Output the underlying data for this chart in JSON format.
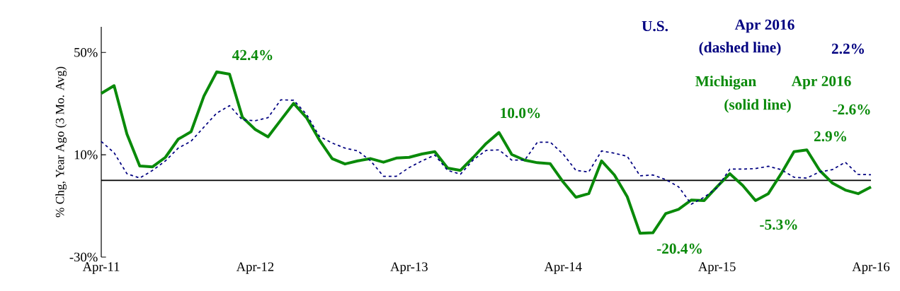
{
  "chart_data": {
    "type": "line",
    "ylabel": "% Chg, Year Ago (3 Mo. Avg)",
    "categories": [
      "Apr-11",
      null,
      null,
      null,
      null,
      null,
      null,
      null,
      null,
      null,
      null,
      null,
      "Apr-12",
      null,
      null,
      null,
      null,
      null,
      null,
      null,
      null,
      null,
      null,
      null,
      "Apr-13",
      null,
      null,
      null,
      null,
      null,
      null,
      null,
      null,
      null,
      null,
      null,
      "Apr-14",
      null,
      null,
      null,
      null,
      null,
      null,
      null,
      null,
      null,
      null,
      null,
      "Apr-15",
      null,
      null,
      null,
      null,
      null,
      null,
      null,
      null,
      null,
      null,
      null,
      "Apr-16"
    ],
    "series": [
      {
        "name": "U.S.",
        "color": "#000080",
        "line_style": "dashed",
        "values": [
          15.2,
          10.8,
          2.6,
          0.9,
          3.9,
          7.6,
          12.6,
          15.3,
          20.8,
          26.3,
          29.2,
          23.6,
          23.3,
          24.5,
          31.5,
          31.3,
          25.8,
          17.2,
          14.6,
          12.6,
          11.5,
          7.6,
          1.6,
          1.6,
          5.0,
          7.6,
          9.9,
          3.9,
          2.4,
          8.0,
          11.7,
          11.9,
          7.9,
          7.9,
          14.9,
          14.9,
          10.3,
          3.9,
          3.3,
          11.5,
          10.6,
          9.4,
          1.8,
          2.1,
          0.3,
          -2.5,
          -9.3,
          -6.6,
          -2.9,
          4.4,
          4.4,
          4.6,
          5.5,
          4.2,
          1.2,
          0.9,
          3.3,
          4.2,
          7.1,
          2.3,
          2.2
        ]
      },
      {
        "name": "Michigan",
        "color": "#0a8a0a",
        "line_style": "solid",
        "values": [
          34.0,
          37.0,
          18.1,
          5.6,
          5.3,
          9.0,
          16.1,
          19.0,
          32.9,
          42.4,
          41.5,
          24.7,
          19.9,
          17.0,
          23.6,
          30.1,
          24.5,
          15.8,
          8.5,
          6.4,
          7.6,
          8.5,
          7.1,
          8.7,
          9.0,
          10.3,
          11.2,
          4.8,
          3.9,
          9.0,
          14.4,
          18.7,
          10.1,
          7.9,
          6.9,
          6.5,
          -0.6,
          -6.6,
          -5.2,
          7.6,
          2.1,
          -6.4,
          -20.7,
          -20.5,
          -13.0,
          -11.3,
          -7.7,
          -7.9,
          -2.5,
          2.6,
          -2.0,
          -7.9,
          -5.2,
          2.6,
          11.2,
          11.9,
          3.9,
          -1.1,
          -3.8,
          -5.2,
          -2.6
        ]
      }
    ],
    "annotations": [
      "Apr 2016",
      "(dashed line)",
      "2.2%",
      "Apr 2016",
      "(solid line)",
      "-2.6%",
      "42.4%",
      "10.0%",
      "-20.4%",
      "2.9%",
      "-5.3%"
    ],
    "ylim": [
      -30,
      60
    ],
    "yticks": [
      {
        "value": -30,
        "label": "-30%"
      },
      {
        "value": 10,
        "label": "10%"
      },
      {
        "value": 50,
        "label": "50%"
      }
    ],
    "ref_lines": [
      {
        "axis": "y",
        "value": 0,
        "color": "#000000"
      }
    ],
    "grid": false,
    "legend": false
  }
}
